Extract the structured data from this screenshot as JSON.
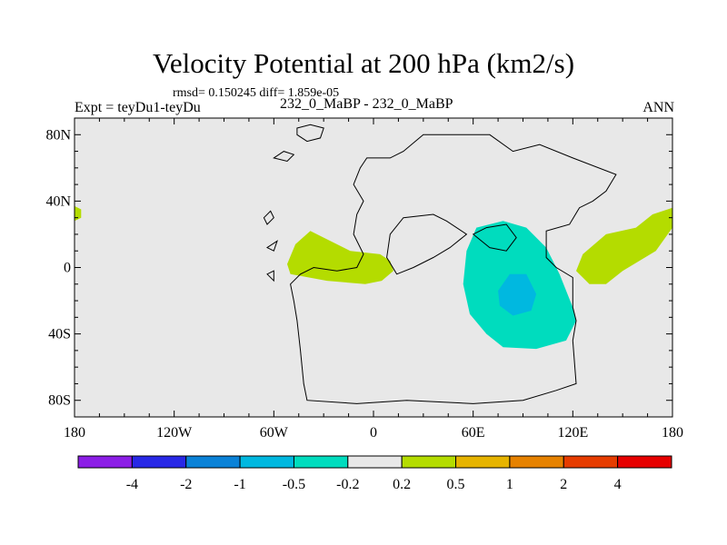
{
  "chart_data": {
    "type": "heatmap",
    "title": "Velocity Potential at 200 hPa (km2/s)",
    "stats_line": "rmsd= 0.150245  diff= 1.859e-05",
    "left_label": "Expt = teyDu1-teyDu",
    "center_label": "232_0_MaBP - 232_0_MaBP",
    "right_label": "ANN",
    "x_ticks": [
      {
        "value": -180,
        "label": "180"
      },
      {
        "value": -120,
        "label": "120W"
      },
      {
        "value": -60,
        "label": "60W"
      },
      {
        "value": 0,
        "label": "0"
      },
      {
        "value": 60,
        "label": "60E"
      },
      {
        "value": 120,
        "label": "120E"
      },
      {
        "value": 180,
        "label": "180"
      }
    ],
    "y_ticks": [
      {
        "value": 80,
        "label": "80N"
      },
      {
        "value": 40,
        "label": "40N"
      },
      {
        "value": 0,
        "label": "0"
      },
      {
        "value": -40,
        "label": "40S"
      },
      {
        "value": -80,
        "label": "80S"
      }
    ],
    "xlim": [
      -180,
      180
    ],
    "ylim": [
      -90,
      90
    ],
    "colorbar": {
      "colors": [
        "#8c1ee6",
        "#2828e6",
        "#0a82d7",
        "#00b8e0",
        "#00dcbe",
        "#e8e8e8",
        "#b4dc00",
        "#e6b400",
        "#e68200",
        "#e63c00",
        "#e60000"
      ],
      "labels": [
        "-4",
        "-2",
        "-1",
        "-0.5",
        "-0.2",
        "0.2",
        "0.5",
        "1",
        "2",
        "4"
      ]
    },
    "regions": [
      {
        "name": "positive-anomaly-west-atlantic",
        "level": "0.2 to 0.5",
        "points": [
          [
            -52,
            2
          ],
          [
            -47,
            14
          ],
          [
            -38,
            22
          ],
          [
            -30,
            18
          ],
          [
            -14,
            10
          ],
          [
            4,
            8
          ],
          [
            10,
            4
          ],
          [
            12,
            -2
          ],
          [
            5,
            -8
          ],
          [
            -5,
            -10
          ],
          [
            -28,
            -8
          ],
          [
            -50,
            -4
          ]
        ]
      },
      {
        "name": "positive-anomaly-west-pacific",
        "level": "0.2 to 0.5",
        "points": [
          [
            122,
            -2
          ],
          [
            126,
            8
          ],
          [
            140,
            20
          ],
          [
            158,
            24
          ],
          [
            168,
            32
          ],
          [
            180,
            36
          ],
          [
            180,
            24
          ],
          [
            170,
            10
          ],
          [
            150,
            -2
          ],
          [
            140,
            -10
          ],
          [
            130,
            -10
          ]
        ]
      },
      {
        "name": "positive-anomaly-dateline-edge",
        "level": "0.2 to 0.5",
        "points": [
          [
            -180,
            37
          ],
          [
            -176,
            35
          ],
          [
            -176,
            30
          ],
          [
            -180,
            28
          ]
        ]
      },
      {
        "name": "negative-anomaly-indian-ocean",
        "level": "-0.5 to -0.2",
        "points": [
          [
            56,
            10
          ],
          [
            62,
            24
          ],
          [
            78,
            28
          ],
          [
            92,
            24
          ],
          [
            104,
            12
          ],
          [
            112,
            -4
          ],
          [
            120,
            -24
          ],
          [
            122,
            -32
          ],
          [
            116,
            -44
          ],
          [
            98,
            -49
          ],
          [
            78,
            -48
          ],
          [
            68,
            -40
          ],
          [
            58,
            -28
          ],
          [
            54,
            -10
          ]
        ]
      },
      {
        "name": "negative-anomaly-indian-ocean-core",
        "level": "-1 to -0.5",
        "points": [
          [
            75,
            -14
          ],
          [
            82,
            -4
          ],
          [
            92,
            -4
          ],
          [
            98,
            -16
          ],
          [
            95,
            -26
          ],
          [
            84,
            -29
          ],
          [
            76,
            -23
          ]
        ]
      }
    ],
    "outlines": [
      [
        [
          -50,
          -10
        ],
        [
          -44,
          -4
        ],
        [
          -36,
          0
        ],
        [
          -22,
          -2
        ],
        [
          -10,
          0
        ],
        [
          -6,
          8
        ],
        [
          -12,
          20
        ],
        [
          -10,
          32
        ],
        [
          -6,
          40
        ],
        [
          -12,
          50
        ],
        [
          -8,
          60
        ],
        [
          -4,
          66
        ],
        [
          10,
          66
        ],
        [
          18,
          70
        ],
        [
          30,
          80
        ],
        [
          70,
          80
        ],
        [
          84,
          70
        ],
        [
          100,
          74
        ],
        [
          120,
          66
        ],
        [
          146,
          56
        ],
        [
          140,
          46
        ],
        [
          132,
          40
        ],
        [
          124,
          36
        ],
        [
          118,
          26
        ],
        [
          104,
          22
        ],
        [
          104,
          6
        ],
        [
          110,
          0
        ],
        [
          120,
          -6
        ],
        [
          120,
          -24
        ],
        [
          122,
          -32
        ],
        [
          120,
          -44
        ],
        [
          122,
          -70
        ],
        [
          110,
          -74
        ],
        [
          90,
          -80
        ],
        [
          60,
          -82
        ],
        [
          20,
          -80
        ],
        [
          -10,
          -82
        ],
        [
          -40,
          -80
        ],
        [
          -42,
          -70
        ],
        [
          -44,
          -50
        ],
        [
          -46,
          -32
        ],
        [
          -48,
          -20
        ],
        [
          -50,
          -10
        ]
      ],
      [
        [
          10,
          20
        ],
        [
          18,
          30
        ],
        [
          36,
          32
        ],
        [
          44,
          28
        ],
        [
          56,
          20
        ],
        [
          46,
          12
        ],
        [
          36,
          6
        ],
        [
          24,
          0
        ],
        [
          14,
          -4
        ],
        [
          8,
          6
        ],
        [
          10,
          20
        ]
      ],
      [
        [
          60,
          20
        ],
        [
          68,
          24
        ],
        [
          80,
          26
        ],
        [
          86,
          18
        ],
        [
          80,
          10
        ],
        [
          70,
          12
        ],
        [
          60,
          20
        ]
      ],
      [
        [
          -46,
          84
        ],
        [
          -38,
          86
        ],
        [
          -30,
          84
        ],
        [
          -32,
          78
        ],
        [
          -40,
          76
        ],
        [
          -46,
          80
        ],
        [
          -46,
          84
        ]
      ],
      [
        [
          -60,
          66
        ],
        [
          -54,
          70
        ],
        [
          -48,
          68
        ],
        [
          -52,
          64
        ],
        [
          -60,
          66
        ]
      ],
      [
        [
          -66,
          30
        ],
        [
          -62,
          34
        ],
        [
          -60,
          30
        ],
        [
          -64,
          26
        ],
        [
          -66,
          30
        ]
      ],
      [
        [
          -64,
          12
        ],
        [
          -58,
          16
        ],
        [
          -60,
          10
        ],
        [
          -64,
          12
        ]
      ],
      [
        [
          -64,
          -4
        ],
        [
          -60,
          -2
        ],
        [
          -60,
          -8
        ],
        [
          -64,
          -4
        ]
      ]
    ]
  }
}
